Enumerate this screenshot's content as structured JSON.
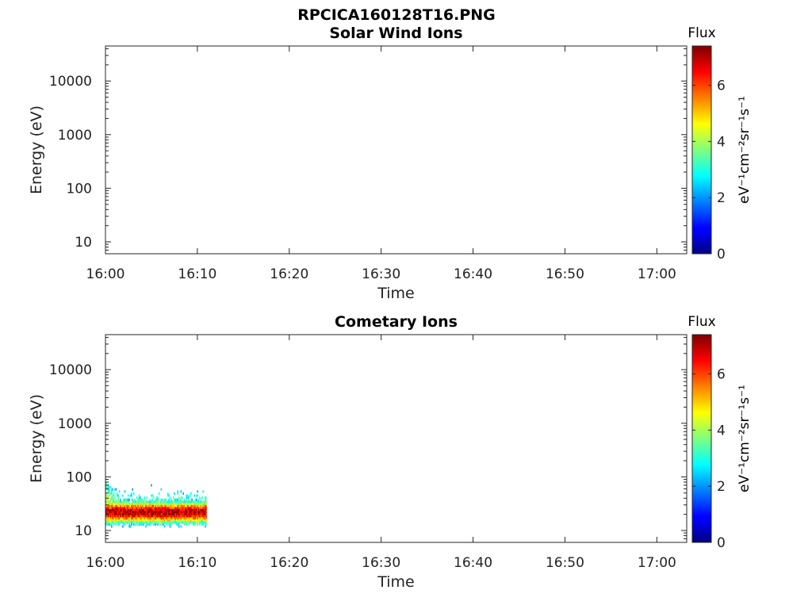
{
  "figure": {
    "title": "RPCICA160128T16.PNG"
  },
  "chart_data": [
    {
      "type": "heatmap",
      "title": "Solar Wind Ions",
      "xlabel": "Time",
      "ylabel": "Energy (eV)",
      "y_scale": "log",
      "ylim": [
        6,
        45000
      ],
      "x_range": [
        "16:00",
        "17:03"
      ],
      "x_tick_labels": [
        "16:00",
        "16:10",
        "16:20",
        "16:30",
        "16:40",
        "16:50",
        "17:00"
      ],
      "y_tick_labels": [
        "10",
        "100",
        "1000",
        "10000"
      ],
      "colorbar": {
        "label": "Flux",
        "unit_text": "eV⁻¹cm⁻²sr⁻¹s⁻¹",
        "range": [
          0,
          7.4
        ],
        "tick_labels": [
          "0",
          "2",
          "4",
          "6"
        ],
        "colormap": "jet"
      },
      "cells": []
    },
    {
      "type": "heatmap",
      "title": "Cometary Ions",
      "xlabel": "Time",
      "ylabel": "Energy (eV)",
      "y_scale": "log",
      "ylim": [
        6,
        45000
      ],
      "x_range": [
        "16:00",
        "17:03"
      ],
      "x_tick_labels": [
        "16:00",
        "16:10",
        "16:20",
        "16:30",
        "16:40",
        "16:50",
        "17:00"
      ],
      "y_tick_labels": [
        "10",
        "100",
        "1000",
        "10000"
      ],
      "colorbar": {
        "label": "Flux",
        "unit_text": "eV⁻¹cm⁻²sr⁻¹s⁻¹",
        "range": [
          0,
          7.4
        ],
        "tick_labels": [
          "0",
          "2",
          "4",
          "6"
        ],
        "colormap": "jet"
      },
      "data_extent": {
        "time_start": "16:00",
        "time_end": "16:11",
        "energy_min_eV": 8,
        "energy_max_eV": 80,
        "peak_flux": 7,
        "peak_energy_eV": 22
      },
      "cells": []
    }
  ]
}
